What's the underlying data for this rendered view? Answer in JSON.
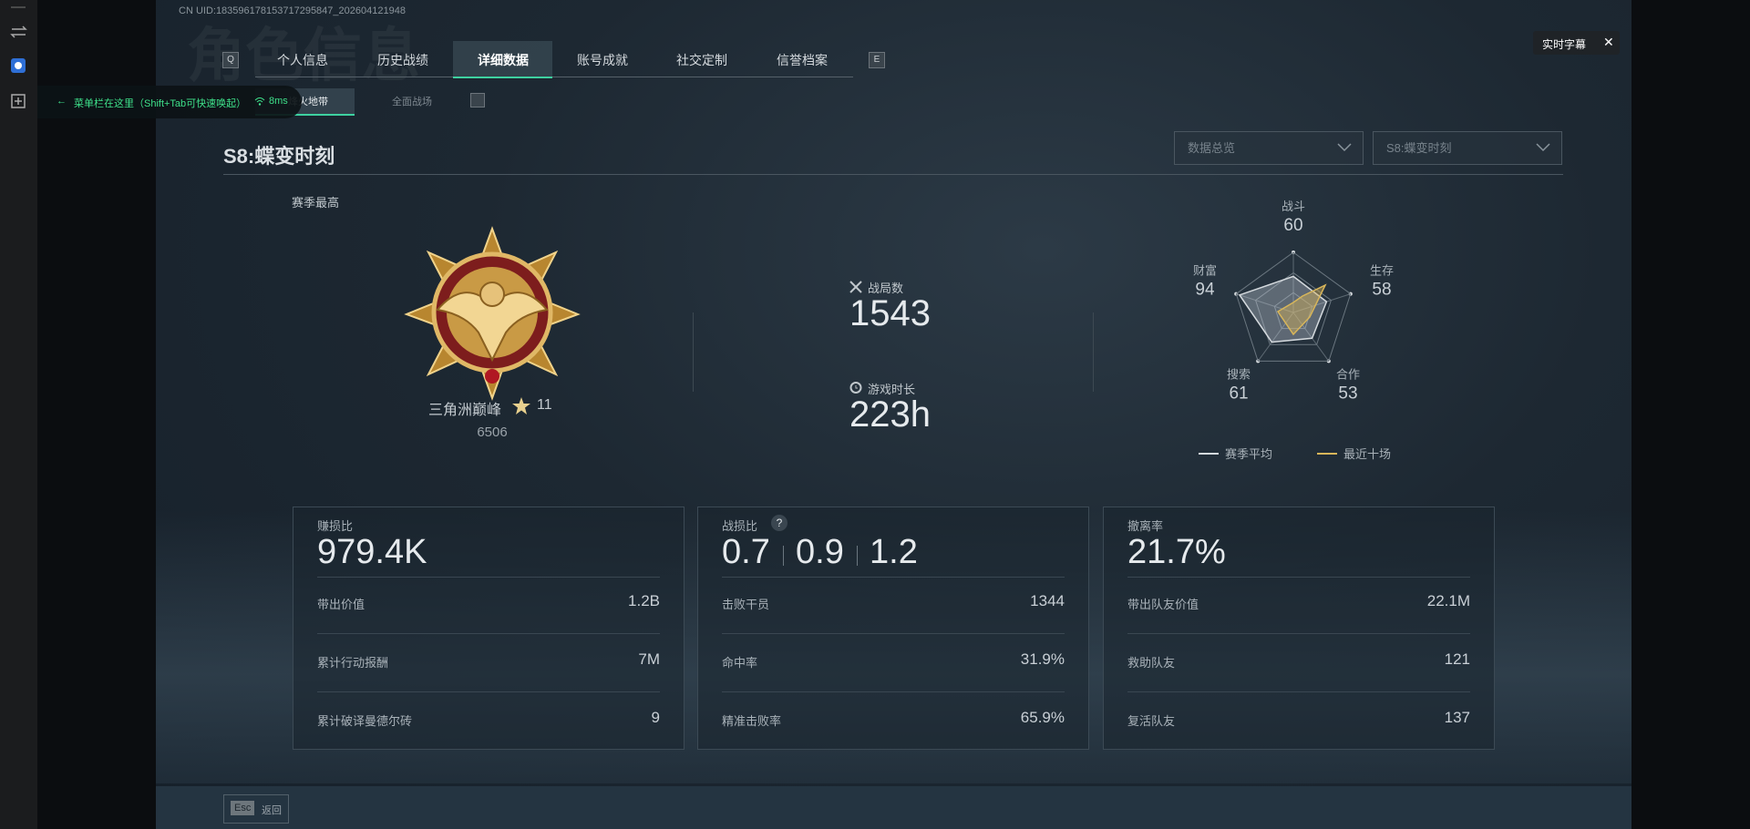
{
  "header": {
    "uid": "CN UID:183596178153717295847_202604121948",
    "watermark": "角色信息",
    "tabs": [
      "个人信息",
      "历史战绩",
      "详细数据",
      "账号成就",
      "社交定制",
      "信誉档案"
    ],
    "tab_keys": [
      "Q",
      "E"
    ],
    "sub_tabs": [
      "烽火地带",
      "全面战场"
    ],
    "caption_button": "实时字幕"
  },
  "overlay": {
    "hint": "菜单栏在这里（Shift+Tab可快速唤起）",
    "ping": "8ms"
  },
  "season": {
    "title": "S8:蝶变时刻",
    "filters": [
      "数据总览",
      "S8:蝶变时刻"
    ]
  },
  "rank": {
    "heading": "赛季最高",
    "name": "三角洲巅峰",
    "stars": "11",
    "score": "6506"
  },
  "summary": [
    {
      "label": "战局数",
      "value": "1543"
    },
    {
      "label": "游戏时长",
      "value": "223h"
    }
  ],
  "radar": {
    "axes": [
      {
        "label": "战斗",
        "value": 60
      },
      {
        "label": "生存",
        "value": 58
      },
      {
        "label": "合作",
        "value": 53
      },
      {
        "label": "搜索",
        "value": 61
      },
      {
        "label": "财富",
        "value": 94
      }
    ],
    "legend": [
      "赛季平均",
      "最近十场"
    ]
  },
  "cards": [
    {
      "label": "赚损比",
      "values": [
        "979.4K"
      ],
      "rows": [
        {
          "label": "带出价值",
          "value": "1.2B"
        },
        {
          "label": "累计行动报酬",
          "value": "7M"
        },
        {
          "label": "累计破译曼德尔砖",
          "value": "9"
        }
      ]
    },
    {
      "label": "战损比",
      "help": "?",
      "values": [
        "0.7",
        "0.9",
        "1.2"
      ],
      "rows": [
        {
          "label": "击败干员",
          "value": "1344"
        },
        {
          "label": "命中率",
          "value": "31.9%"
        },
        {
          "label": "精准击败率",
          "value": "65.9%"
        }
      ]
    },
    {
      "label": "撤离率",
      "values": [
        "21.7%"
      ],
      "rows": [
        {
          "label": "带出队友价值",
          "value": "22.1M"
        },
        {
          "label": "救助队友",
          "value": "121"
        },
        {
          "label": "复活队友",
          "value": "137"
        }
      ]
    }
  ],
  "footer": {
    "key": "Esc",
    "action": "返回"
  }
}
